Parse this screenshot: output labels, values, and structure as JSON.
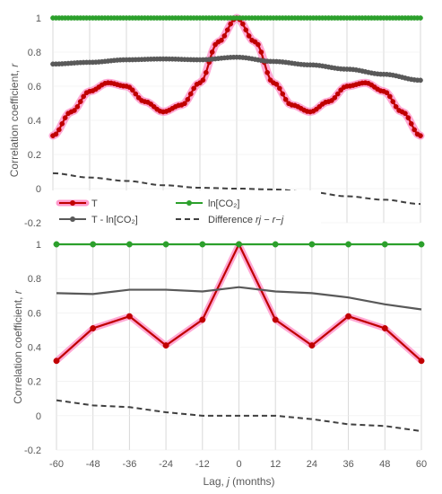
{
  "chart_data": [
    {
      "type": "line",
      "panel": "top",
      "ylabel": "Correlation coefficient, r",
      "ylim": [
        -0.2,
        1.0
      ],
      "yticks": [
        "1",
        "0.8",
        "0.6",
        "0.4",
        "0.2",
        "0",
        "-0.2"
      ],
      "xlim": [
        -60,
        60
      ],
      "grid": true,
      "legend_position": "lower-left",
      "series": [
        {
          "name": "T",
          "color": "#c00000",
          "marker": "circle",
          "halo": "#ff99cc",
          "step": 1,
          "values_at": {
            "-60": 0.31,
            "-54": 0.45,
            "-48": 0.57,
            "-42": 0.62,
            "-36": 0.6,
            "-30": 0.51,
            "-24": 0.45,
            "-18": 0.49,
            "-12": 0.62,
            "-6": 0.86,
            "0": 1.0,
            "6": 0.86,
            "12": 0.62,
            "18": 0.49,
            "24": 0.45,
            "30": 0.51,
            "36": 0.6,
            "42": 0.62,
            "48": 0.57,
            "54": 0.45,
            "60": 0.31
          }
        },
        {
          "name": "ln[CO₂]",
          "color": "#2ca02c",
          "marker": "circle",
          "step": 1,
          "values_at": {
            "-60": 1.0,
            "60": 1.0
          }
        },
        {
          "name": "T - ln[CO₂]",
          "color": "#595959",
          "marker": "circle",
          "step": 1,
          "values_at": {
            "-60": 0.73,
            "-48": 0.74,
            "-36": 0.755,
            "-24": 0.76,
            "-12": 0.755,
            "0": 0.77,
            "12": 0.745,
            "24": 0.725,
            "36": 0.7,
            "48": 0.67,
            "60": 0.635
          }
        },
        {
          "name": "Difference rj − r−j",
          "color": "#404040",
          "dashed": true,
          "values_at": {
            "-60": 0.09,
            "-48": 0.065,
            "-36": 0.045,
            "-24": 0.02,
            "-12": 0.005,
            "0": 0.0,
            "12": -0.005,
            "24": -0.02,
            "36": -0.045,
            "48": -0.065,
            "60": -0.09
          }
        }
      ]
    },
    {
      "type": "line",
      "panel": "bottom",
      "xlabel": "Lag, j (months)",
      "ylabel": "Correlation coefficient, r",
      "ylim": [
        -0.2,
        1.0
      ],
      "yticks": [
        "1",
        "0.8",
        "0.6",
        "0.4",
        "0.2",
        "0",
        "-0.2"
      ],
      "categories": [
        "-60",
        "-48",
        "-36",
        "-24",
        "-12",
        "0",
        "12",
        "24",
        "36",
        "48",
        "60"
      ],
      "grid": true,
      "series": [
        {
          "name": "T",
          "color": "#c00000",
          "marker": "circle",
          "halo": "#ff99cc",
          "values": [
            0.32,
            0.51,
            0.58,
            0.41,
            0.56,
            1.0,
            0.56,
            0.41,
            0.58,
            0.51,
            0.32
          ]
        },
        {
          "name": "ln[CO₂]",
          "color": "#2ca02c",
          "marker": "circle",
          "values": [
            1.0,
            1.0,
            1.0,
            1.0,
            1.0,
            1.0,
            1.0,
            1.0,
            1.0,
            1.0,
            1.0
          ]
        },
        {
          "name": "T - ln[CO₂]",
          "color": "#595959",
          "values": [
            0.715,
            0.71,
            0.735,
            0.735,
            0.725,
            0.75,
            0.725,
            0.715,
            0.69,
            0.65,
            0.62
          ]
        },
        {
          "name": "Difference rj − r−j",
          "color": "#404040",
          "dashed": true,
          "values": [
            0.09,
            0.06,
            0.05,
            0.02,
            0.0,
            0.0,
            0.0,
            -0.02,
            -0.05,
            -0.06,
            -0.09
          ]
        }
      ]
    }
  ],
  "legend": {
    "items": [
      {
        "label": "T",
        "key": "t"
      },
      {
        "label": "ln[CO₂]",
        "key": "lnco2"
      },
      {
        "label": "T - ln[CO₂]",
        "key": "tln"
      },
      {
        "label": "Difference",
        "rest": " rj − r−j",
        "key": "diff"
      }
    ]
  }
}
